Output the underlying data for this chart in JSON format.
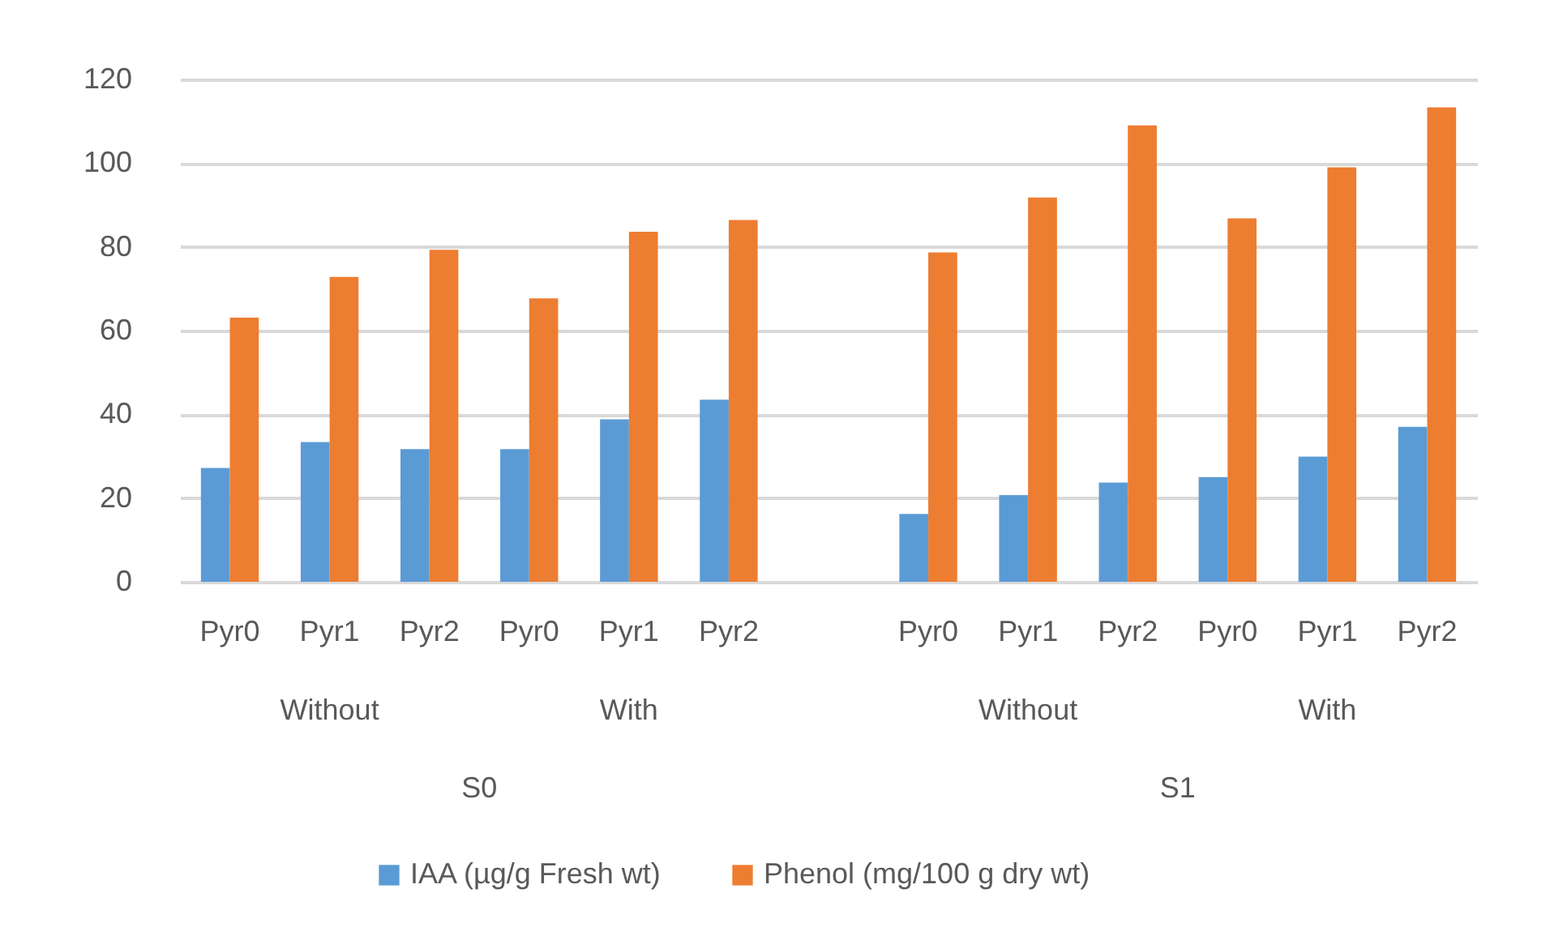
{
  "chart_data": {
    "type": "bar",
    "categories": [
      "Pyr0",
      "Pyr1",
      "Pyr2",
      "Pyr0",
      "Pyr1",
      "Pyr2",
      null,
      "Pyr0",
      "Pyr1",
      "Pyr2",
      "Pyr0",
      "Pyr1",
      "Pyr2"
    ],
    "series": [
      {
        "name": "IAA (µg/g Fresh wt)",
        "color": "#5b9bd5",
        "values": [
          27.2,
          33.4,
          31.7,
          31.7,
          38.8,
          43.5,
          null,
          16.2,
          20.7,
          23.7,
          25,
          29.9,
          37
        ]
      },
      {
        "name": "Phenol (mg/100 g dry wt)",
        "color": "#ed7d31",
        "values": [
          63.1,
          72.8,
          79.3,
          67.7,
          83.6,
          86.4,
          null,
          78.7,
          91.8,
          109,
          86.8,
          99,
          113.3
        ]
      }
    ],
    "annotations": [
      "Without",
      "With",
      "Without",
      "With",
      "S0",
      "S1"
    ],
    "ylim": [
      0,
      120
    ],
    "yticks": [
      0,
      20,
      40,
      60,
      80,
      100,
      120
    ],
    "grid": "y",
    "legend": "bottom"
  }
}
